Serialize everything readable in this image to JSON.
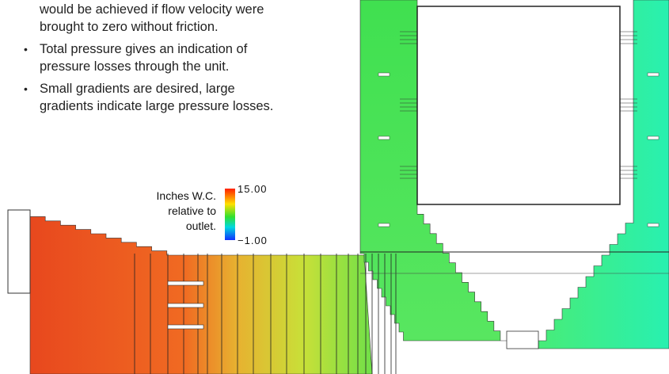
{
  "bullets": [
    {
      "lines": [
        "would be achieved if flow velocity were",
        "brought to zero without friction."
      ]
    },
    {
      "lines": [
        "Total pressure gives an indication of",
        "pressure losses through the unit."
      ]
    },
    {
      "lines": [
        "Small gradients are desired, large",
        "gradients indicate large pressure losses."
      ]
    }
  ],
  "legend": {
    "caption": [
      "Inches W.C.",
      "relative to",
      "outlet."
    ],
    "max": "15.00",
    "min": "−1.00"
  }
}
